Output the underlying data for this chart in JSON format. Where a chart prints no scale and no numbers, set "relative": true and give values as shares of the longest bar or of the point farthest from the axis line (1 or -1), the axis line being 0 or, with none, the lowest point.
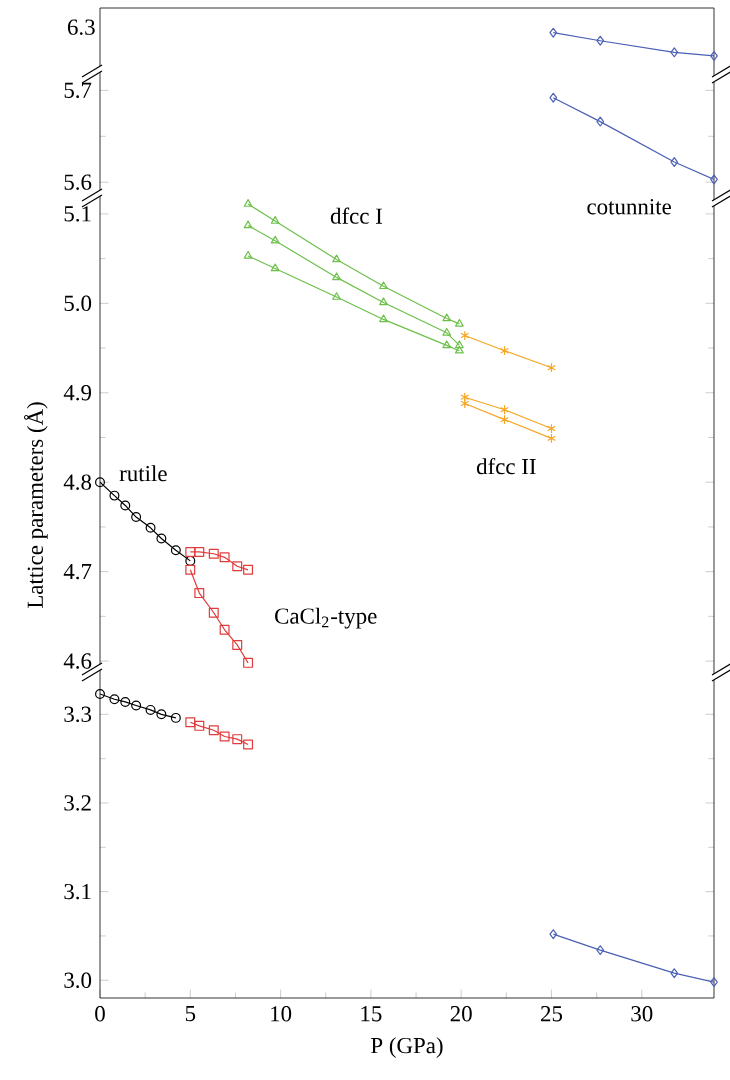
{
  "chart_data": [
    {
      "type": "line",
      "xlim": [
        0,
        34
      ],
      "relative": true,
      "tick_labels": "y",
      "annotations": [
        "6.3"
      ],
      "series": [
        {
          "color": "#4a5fb5",
          "marker": "diamond",
          "x": [
            25.1,
            27.7,
            31.8,
            34.0
          ],
          "values": [
            1,
            0.654,
            0.154,
            0
          ]
        }
      ]
    },
    {
      "type": "line",
      "xlim": [
        0,
        34
      ],
      "ylim": [
        5.585,
        5.72
      ],
      "yticks": [
        5.6,
        5.7
      ],
      "tick_labels": "y",
      "series": [
        {
          "color": "#4a5fb5",
          "marker": "diamond",
          "x": [
            25.1,
            27.7,
            31.8,
            34.0
          ],
          "values": [
            5.692,
            5.666,
            5.622,
            5.603
          ]
        }
      ]
    },
    {
      "type": "line",
      "xlim": [
        0,
        34
      ],
      "ylim": [
        4.59,
        5.12
      ],
      "yticks": [
        4.6,
        4.7,
        4.8,
        4.9,
        {
          "value": 5.0,
          "label": "5.0"
        },
        5.1
      ],
      "tick_labels": "y",
      "ylabel": "Lattice parameters (Å)",
      "annotations": [
        "rutile",
        "CaCl$_{2}$-type",
        "dfcc I",
        "dfcc II",
        "cotunnite"
      ],
      "series": [
        {
          "color": "#000000",
          "marker": "circle",
          "x": [
            0,
            0.8,
            1.4,
            2.0,
            2.8,
            3.4,
            4.2,
            5.0
          ],
          "values": [
            4.8,
            4.785,
            4.774,
            4.761,
            4.749,
            4.737,
            4.724,
            4.712
          ]
        },
        {
          "color": "#e03c3c",
          "marker": "square",
          "x": [
            5.0,
            5.5,
            6.3,
            6.9,
            7.6,
            8.2
          ],
          "values": [
            4.722,
            4.722,
            4.72,
            4.716,
            4.706,
            4.702
          ]
        },
        {
          "color": "#e03c3c",
          "marker": "square",
          "x": [
            5.0,
            5.5,
            6.3,
            6.9,
            7.6,
            8.2
          ],
          "values": [
            4.702,
            4.676,
            4.654,
            4.635,
            4.618,
            4.598
          ]
        },
        {
          "color": "#6cc04a",
          "marker": "triangle",
          "x": [
            8.2,
            9.7,
            13.1,
            15.7,
            19.2,
            19.9
          ],
          "values": [
            5.111,
            5.092,
            5.049,
            5.019,
            4.983,
            4.977
          ]
        },
        {
          "color": "#6cc04a",
          "marker": "triangle",
          "x": [
            8.2,
            9.7,
            13.1,
            15.7,
            19.2,
            19.9
          ],
          "values": [
            5.087,
            5.07,
            5.029,
            5.001,
            4.967,
            4.953
          ]
        },
        {
          "color": "#6cc04a",
          "marker": "triangle",
          "x": [
            8.2,
            9.7,
            13.1,
            15.7,
            19.2,
            19.9
          ],
          "values": [
            5.053,
            5.039,
            5.007,
            4.982,
            4.953,
            4.947
          ]
        },
        {
          "color": "#f5a623",
          "marker": "cross",
          "x": [
            20.2,
            22.4,
            25.0
          ],
          "values": [
            4.964,
            4.947,
            4.928
          ]
        },
        {
          "color": "#f5a623",
          "marker": "cross",
          "x": [
            20.2,
            22.4,
            25.0
          ],
          "values": [
            4.895,
            4.881,
            4.86
          ]
        },
        {
          "color": "#f5a623",
          "marker": "cross",
          "x": [
            20.2,
            22.4,
            25.0
          ],
          "values": [
            4.888,
            4.87,
            4.849
          ]
        }
      ]
    },
    {
      "type": "line",
      "xlim": [
        0,
        34
      ],
      "ylim": [
        2.98,
        3.35
      ],
      "xticks": [
        0,
        5,
        10,
        15,
        20,
        25,
        30
      ],
      "yticks": [
        {
          "value": 3.0,
          "label": "3.0"
        },
        3.1,
        3.2,
        3.3
      ],
      "xlabel": "P (GPa)",
      "series": [
        {
          "color": "#000000",
          "marker": "circle",
          "x": [
            0,
            0.8,
            1.4,
            2.0,
            2.8,
            3.4,
            4.2
          ],
          "values": [
            3.323,
            3.317,
            3.314,
            3.31,
            3.305,
            3.3,
            3.296
          ]
        },
        {
          "color": "#e03c3c",
          "marker": "square",
          "x": [
            5.0,
            5.5,
            6.3,
            6.9,
            7.6,
            8.2
          ],
          "values": [
            3.291,
            3.287,
            3.282,
            3.275,
            3.272,
            3.266
          ]
        },
        {
          "color": "#4a5fb5",
          "marker": "diamond",
          "x": [
            25.1,
            27.7,
            31.8,
            34.0
          ],
          "values": [
            3.052,
            3.034,
            3.008,
            2.998
          ]
        }
      ]
    }
  ]
}
